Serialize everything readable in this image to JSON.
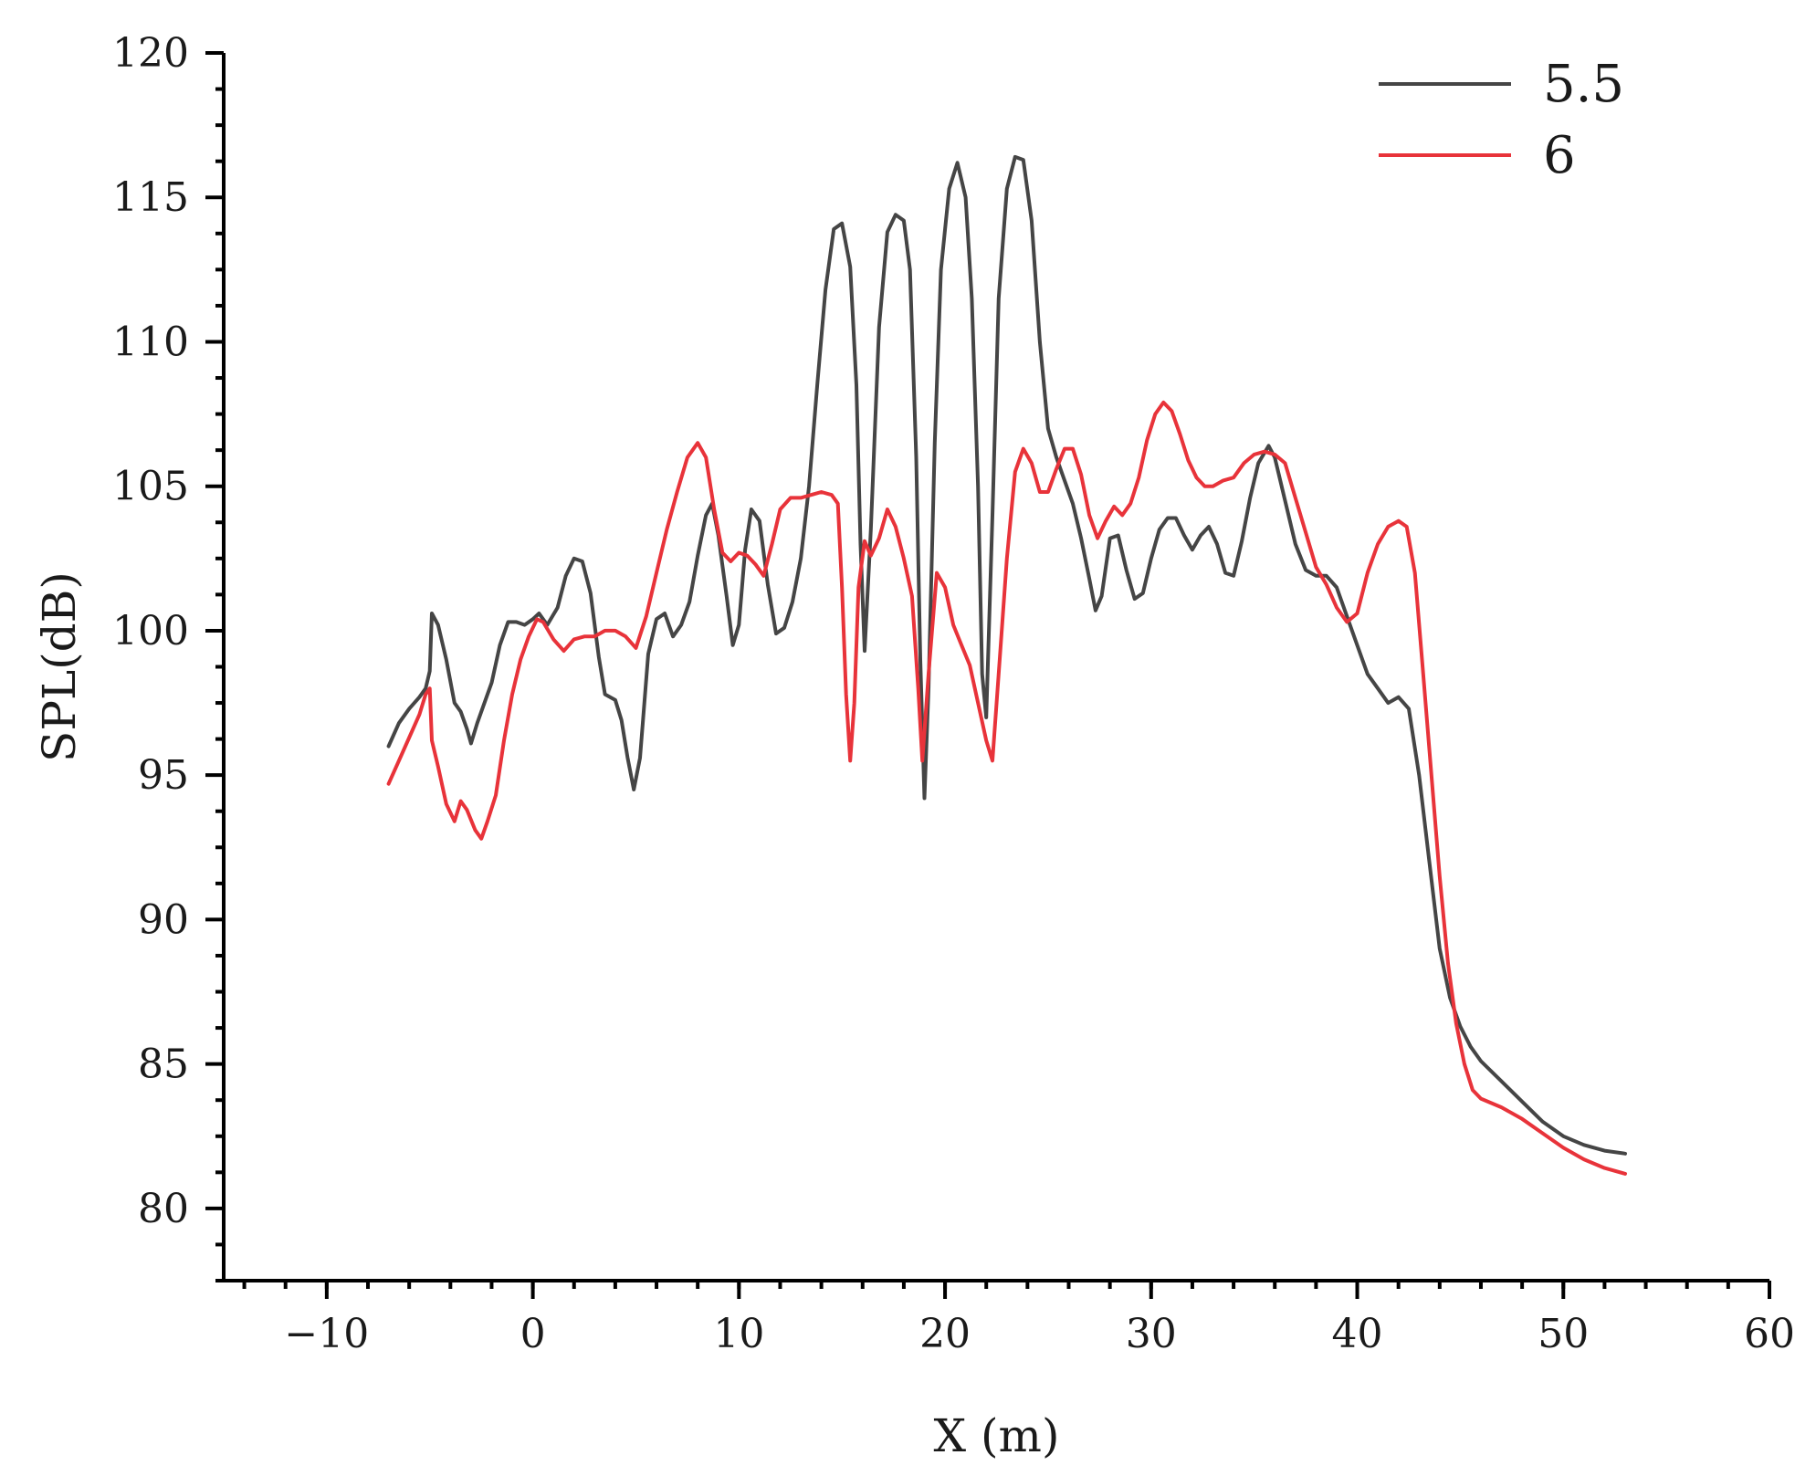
{
  "chart_data": {
    "type": "line",
    "title": "",
    "xlabel": "X  (m)",
    "ylabel": "SPL(dB)",
    "xlim": [
      -15,
      60
    ],
    "ylim": [
      77.5,
      120
    ],
    "xticks": [
      -10,
      0,
      10,
      20,
      30,
      40,
      50,
      60
    ],
    "yticks": [
      80,
      85,
      90,
      95,
      100,
      105,
      110,
      115,
      120
    ],
    "xtick_labels": [
      "−10",
      "0",
      "10",
      "20",
      "30",
      "40",
      "50",
      "60"
    ],
    "ytick_labels": [
      "80",
      "85",
      "90",
      "95",
      "100",
      "105",
      "110",
      "115",
      "120"
    ],
    "x_minor_step": 1,
    "y_minor_step": 1,
    "grid": false,
    "legend_position": "top-right",
    "series": [
      {
        "name": "5.5",
        "color": "#454545",
        "points": [
          [
            -7,
            96.0
          ],
          [
            -6.5,
            96.8
          ],
          [
            -6,
            97.3
          ],
          [
            -5.5,
            97.7
          ],
          [
            -5.2,
            98.0
          ],
          [
            -5,
            98.6
          ],
          [
            -4.9,
            100.6
          ],
          [
            -4.6,
            100.2
          ],
          [
            -4.2,
            99.0
          ],
          [
            -3.8,
            97.5
          ],
          [
            -3.5,
            97.2
          ],
          [
            -3.2,
            96.6
          ],
          [
            -3,
            96.1
          ],
          [
            -2.7,
            96.8
          ],
          [
            -2.3,
            97.6
          ],
          [
            -2,
            98.2
          ],
          [
            -1.6,
            99.5
          ],
          [
            -1.2,
            100.3
          ],
          [
            -0.8,
            100.3
          ],
          [
            -0.4,
            100.2
          ],
          [
            0,
            100.4
          ],
          [
            0.3,
            100.6
          ],
          [
            0.7,
            100.2
          ],
          [
            1.2,
            100.8
          ],
          [
            1.6,
            101.9
          ],
          [
            2.0,
            102.5
          ],
          [
            2.4,
            102.4
          ],
          [
            2.8,
            101.3
          ],
          [
            3.2,
            99.1
          ],
          [
            3.5,
            97.8
          ],
          [
            4.0,
            97.6
          ],
          [
            4.3,
            96.9
          ],
          [
            4.6,
            95.6
          ],
          [
            4.9,
            94.5
          ],
          [
            5.2,
            95.6
          ],
          [
            5.6,
            99.2
          ],
          [
            6.0,
            100.4
          ],
          [
            6.4,
            100.6
          ],
          [
            6.8,
            99.8
          ],
          [
            7.2,
            100.2
          ],
          [
            7.6,
            101.0
          ],
          [
            8.0,
            102.6
          ],
          [
            8.4,
            104.0
          ],
          [
            8.7,
            104.4
          ],
          [
            9.0,
            103.3
          ],
          [
            9.4,
            101.2
          ],
          [
            9.7,
            99.5
          ],
          [
            10.0,
            100.2
          ],
          [
            10.3,
            102.8
          ],
          [
            10.6,
            104.2
          ],
          [
            11.0,
            103.8
          ],
          [
            11.4,
            101.6
          ],
          [
            11.8,
            99.9
          ],
          [
            12.2,
            100.1
          ],
          [
            12.6,
            101.0
          ],
          [
            13.0,
            102.5
          ],
          [
            13.4,
            105.0
          ],
          [
            13.8,
            108.5
          ],
          [
            14.2,
            111.8
          ],
          [
            14.6,
            113.9
          ],
          [
            15.0,
            114.1
          ],
          [
            15.4,
            112.6
          ],
          [
            15.7,
            108.5
          ],
          [
            15.9,
            103.0
          ],
          [
            16.1,
            99.3
          ],
          [
            16.4,
            103.5
          ],
          [
            16.8,
            110.5
          ],
          [
            17.2,
            113.8
          ],
          [
            17.6,
            114.4
          ],
          [
            18.0,
            114.2
          ],
          [
            18.3,
            112.5
          ],
          [
            18.6,
            106.0
          ],
          [
            18.8,
            99.0
          ],
          [
            19.0,
            94.2
          ],
          [
            19.2,
            98.0
          ],
          [
            19.5,
            106.5
          ],
          [
            19.8,
            112.5
          ],
          [
            20.2,
            115.3
          ],
          [
            20.6,
            116.2
          ],
          [
            21.0,
            115.0
          ],
          [
            21.3,
            111.5
          ],
          [
            21.6,
            105.0
          ],
          [
            21.8,
            98.5
          ],
          [
            22.0,
            97.0
          ],
          [
            22.3,
            104.0
          ],
          [
            22.6,
            111.5
          ],
          [
            23.0,
            115.3
          ],
          [
            23.4,
            116.4
          ],
          [
            23.8,
            116.3
          ],
          [
            24.2,
            114.2
          ],
          [
            24.6,
            110.0
          ],
          [
            25.0,
            107.0
          ],
          [
            25.4,
            106.0
          ],
          [
            25.8,
            105.2
          ],
          [
            26.2,
            104.4
          ],
          [
            26.6,
            103.2
          ],
          [
            27.0,
            101.8
          ],
          [
            27.3,
            100.7
          ],
          [
            27.6,
            101.2
          ],
          [
            28.0,
            103.2
          ],
          [
            28.4,
            103.3
          ],
          [
            28.8,
            102.1
          ],
          [
            29.2,
            101.1
          ],
          [
            29.6,
            101.3
          ],
          [
            30.0,
            102.5
          ],
          [
            30.4,
            103.5
          ],
          [
            30.8,
            103.9
          ],
          [
            31.2,
            103.9
          ],
          [
            31.6,
            103.3
          ],
          [
            32.0,
            102.8
          ],
          [
            32.4,
            103.3
          ],
          [
            32.8,
            103.6
          ],
          [
            33.2,
            103.0
          ],
          [
            33.6,
            102.0
          ],
          [
            34.0,
            101.9
          ],
          [
            34.4,
            103.1
          ],
          [
            34.8,
            104.6
          ],
          [
            35.2,
            105.8
          ],
          [
            35.7,
            106.4
          ],
          [
            36.0,
            106.0
          ],
          [
            36.5,
            104.5
          ],
          [
            37.0,
            103.0
          ],
          [
            37.5,
            102.1
          ],
          [
            38.0,
            101.9
          ],
          [
            38.5,
            101.9
          ],
          [
            39.0,
            101.5
          ],
          [
            39.5,
            100.5
          ],
          [
            40.0,
            99.5
          ],
          [
            40.5,
            98.5
          ],
          [
            41.0,
            98.0
          ],
          [
            41.5,
            97.5
          ],
          [
            42.0,
            97.7
          ],
          [
            42.5,
            97.3
          ],
          [
            43.0,
            95.0
          ],
          [
            43.5,
            92.0
          ],
          [
            44.0,
            89.0
          ],
          [
            44.5,
            87.3
          ],
          [
            45.0,
            86.3
          ],
          [
            45.5,
            85.6
          ],
          [
            46.0,
            85.1
          ],
          [
            47.0,
            84.4
          ],
          [
            48.0,
            83.7
          ],
          [
            49.0,
            83.0
          ],
          [
            50.0,
            82.5
          ],
          [
            51.0,
            82.2
          ],
          [
            52.0,
            82.0
          ],
          [
            53.0,
            81.9
          ]
        ]
      },
      {
        "name": "6",
        "color": "#e8333a",
        "points": [
          [
            -7,
            94.7
          ],
          [
            -6.5,
            95.5
          ],
          [
            -6,
            96.3
          ],
          [
            -5.5,
            97.1
          ],
          [
            -5.2,
            97.8
          ],
          [
            -5.0,
            98.0
          ],
          [
            -4.9,
            96.2
          ],
          [
            -4.6,
            95.3
          ],
          [
            -4.2,
            94.0
          ],
          [
            -3.8,
            93.4
          ],
          [
            -3.5,
            94.1
          ],
          [
            -3.2,
            93.8
          ],
          [
            -2.8,
            93.1
          ],
          [
            -2.5,
            92.8
          ],
          [
            -2.2,
            93.4
          ],
          [
            -1.8,
            94.3
          ],
          [
            -1.4,
            96.2
          ],
          [
            -1.0,
            97.8
          ],
          [
            -0.6,
            99.0
          ],
          [
            -0.2,
            99.8
          ],
          [
            0.2,
            100.4
          ],
          [
            0.5,
            100.3
          ],
          [
            1.0,
            99.7
          ],
          [
            1.5,
            99.3
          ],
          [
            2.0,
            99.7
          ],
          [
            2.5,
            99.8
          ],
          [
            3.0,
            99.8
          ],
          [
            3.5,
            100.0
          ],
          [
            4.0,
            100.0
          ],
          [
            4.5,
            99.8
          ],
          [
            5.0,
            99.4
          ],
          [
            5.5,
            100.5
          ],
          [
            6.0,
            102.0
          ],
          [
            6.5,
            103.5
          ],
          [
            7.0,
            104.8
          ],
          [
            7.5,
            106.0
          ],
          [
            8.0,
            106.5
          ],
          [
            8.4,
            106.0
          ],
          [
            8.8,
            104.2
          ],
          [
            9.2,
            102.7
          ],
          [
            9.6,
            102.4
          ],
          [
            10.0,
            102.7
          ],
          [
            10.4,
            102.6
          ],
          [
            10.8,
            102.3
          ],
          [
            11.2,
            101.9
          ],
          [
            11.6,
            103.0
          ],
          [
            12.0,
            104.2
          ],
          [
            12.5,
            104.6
          ],
          [
            13.0,
            104.6
          ],
          [
            13.5,
            104.7
          ],
          [
            14.0,
            104.8
          ],
          [
            14.5,
            104.7
          ],
          [
            14.8,
            104.4
          ],
          [
            15.0,
            101.5
          ],
          [
            15.2,
            97.8
          ],
          [
            15.4,
            95.5
          ],
          [
            15.6,
            97.5
          ],
          [
            15.8,
            101.5
          ],
          [
            16.1,
            103.1
          ],
          [
            16.4,
            102.6
          ],
          [
            16.8,
            103.2
          ],
          [
            17.2,
            104.2
          ],
          [
            17.6,
            103.6
          ],
          [
            18.0,
            102.5
          ],
          [
            18.4,
            101.2
          ],
          [
            18.7,
            98.0
          ],
          [
            18.9,
            95.5
          ],
          [
            19.2,
            98.5
          ],
          [
            19.6,
            102.0
          ],
          [
            20.0,
            101.5
          ],
          [
            20.4,
            100.2
          ],
          [
            20.8,
            99.5
          ],
          [
            21.2,
            98.8
          ],
          [
            21.6,
            97.5
          ],
          [
            22.0,
            96.2
          ],
          [
            22.3,
            95.5
          ],
          [
            22.6,
            98.5
          ],
          [
            23.0,
            102.5
          ],
          [
            23.4,
            105.5
          ],
          [
            23.8,
            106.3
          ],
          [
            24.2,
            105.8
          ],
          [
            24.6,
            104.8
          ],
          [
            25.0,
            104.8
          ],
          [
            25.4,
            105.6
          ],
          [
            25.8,
            106.3
          ],
          [
            26.2,
            106.3
          ],
          [
            26.6,
            105.4
          ],
          [
            27.0,
            104.0
          ],
          [
            27.4,
            103.2
          ],
          [
            27.8,
            103.8
          ],
          [
            28.2,
            104.3
          ],
          [
            28.6,
            104.0
          ],
          [
            29.0,
            104.4
          ],
          [
            29.4,
            105.3
          ],
          [
            29.8,
            106.6
          ],
          [
            30.2,
            107.5
          ],
          [
            30.6,
            107.9
          ],
          [
            31.0,
            107.6
          ],
          [
            31.4,
            106.8
          ],
          [
            31.8,
            105.9
          ],
          [
            32.2,
            105.3
          ],
          [
            32.6,
            105.0
          ],
          [
            33.0,
            105.0
          ],
          [
            33.5,
            105.2
          ],
          [
            34.0,
            105.3
          ],
          [
            34.5,
            105.8
          ],
          [
            35.0,
            106.1
          ],
          [
            35.5,
            106.2
          ],
          [
            36.0,
            106.1
          ],
          [
            36.5,
            105.8
          ],
          [
            37.0,
            104.6
          ],
          [
            37.5,
            103.4
          ],
          [
            38.0,
            102.2
          ],
          [
            38.5,
            101.6
          ],
          [
            39.0,
            100.8
          ],
          [
            39.5,
            100.3
          ],
          [
            40.0,
            100.6
          ],
          [
            40.5,
            102.0
          ],
          [
            41.0,
            103.0
          ],
          [
            41.5,
            103.6
          ],
          [
            42.0,
            103.8
          ],
          [
            42.4,
            103.6
          ],
          [
            42.8,
            102.0
          ],
          [
            43.2,
            98.5
          ],
          [
            43.6,
            95.0
          ],
          [
            44.0,
            91.5
          ],
          [
            44.4,
            88.5
          ],
          [
            44.8,
            86.4
          ],
          [
            45.2,
            85.0
          ],
          [
            45.6,
            84.1
          ],
          [
            46.0,
            83.8
          ],
          [
            47.0,
            83.5
          ],
          [
            48.0,
            83.1
          ],
          [
            49.0,
            82.6
          ],
          [
            50.0,
            82.1
          ],
          [
            51.0,
            81.7
          ],
          [
            52.0,
            81.4
          ],
          [
            53.0,
            81.2
          ]
        ]
      }
    ]
  }
}
